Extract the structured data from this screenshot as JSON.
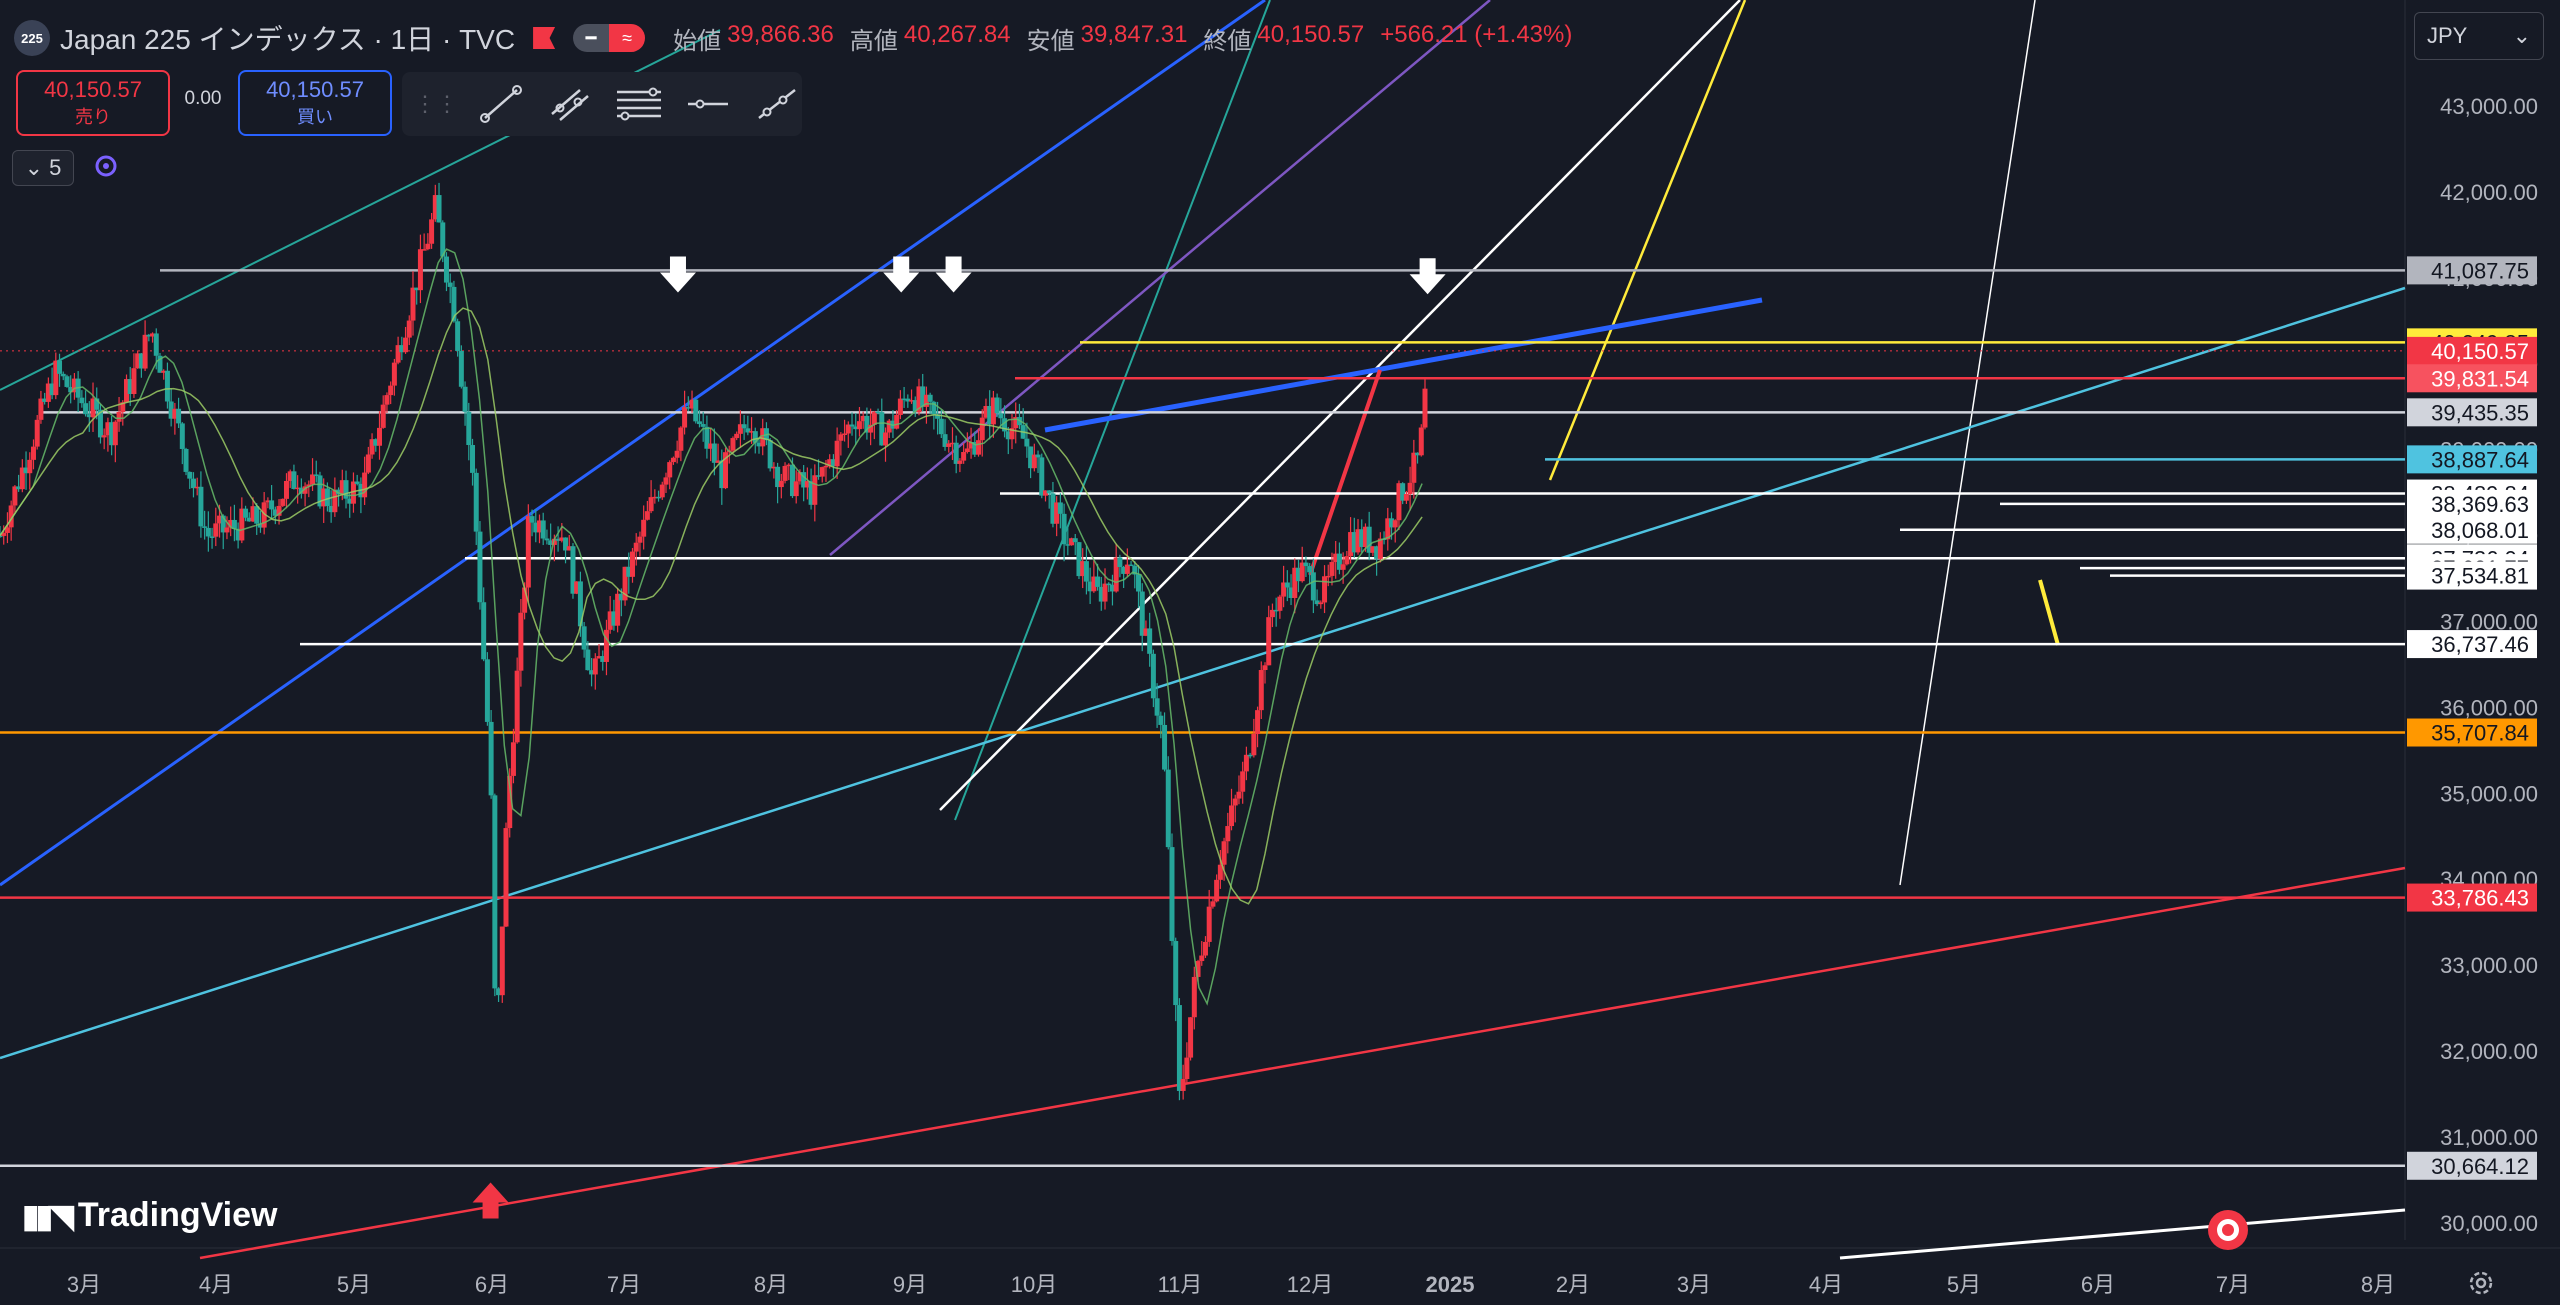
{
  "header": {
    "symbol_logo": "225",
    "symbol_name": "Japan 225 インデックス · 1日 · TVC",
    "ohlc": [
      {
        "label": "始値",
        "value": "39,866.36"
      },
      {
        "label": "高値",
        "value": "40,267.84"
      },
      {
        "label": "安値",
        "value": "39,847.31"
      },
      {
        "label": "終値",
        "value": "40,150.57"
      }
    ],
    "change": "+566.21 (+1.43%)"
  },
  "trade": {
    "sell_price": "40,150.57",
    "sell_label": "売り",
    "spread": "0.00",
    "buy_price": "40,150.57",
    "buy_label": "買い"
  },
  "indicators": {
    "count": "5"
  },
  "currency": {
    "label": "JPY"
  },
  "branding": {
    "logo_text": "TradingView"
  },
  "colors": {
    "up": "#f23645",
    "down": "#26a69a",
    "background": "#161a25",
    "accent": "#2962ff"
  },
  "chart_data": {
    "type": "candlestick",
    "x_tick_labels": [
      "3月",
      "4月",
      "5月",
      "6月",
      "7月",
      "8月",
      "9月",
      "10月",
      "11月",
      "12月",
      "2025",
      "2月",
      "3月",
      "4月",
      "5月",
      "6月",
      "7月",
      "8月"
    ],
    "y_range": [
      29800,
      44000
    ],
    "y_tick_values": [
      30000,
      31000,
      32000,
      33000,
      34000,
      35000,
      36000,
      37000,
      38000,
      39000,
      40000,
      41000,
      42000,
      43000
    ],
    "y_tick_labels": [
      "30,000.00",
      "31,000.00",
      "32,000.00",
      "33,000.00",
      "34,000.00",
      "35,000.00",
      "36,000.00",
      "37,000.00",
      "38,000.00",
      "39,000.00",
      "40,000.00",
      "41,000.00",
      "42,000.00",
      "43,000.00"
    ],
    "price_labels": [
      {
        "value": 41087.75,
        "text": "41,087.75",
        "bg": "#b2b5be",
        "fg": "#131722"
      },
      {
        "value": 40249.85,
        "text": "40,249.85",
        "bg": "#ffeb3b",
        "fg": "#131722"
      },
      {
        "value": 40150.57,
        "text": "40,150.57",
        "bg": "#f23645",
        "fg": "#ffffff"
      },
      {
        "value": 39831.54,
        "text": "39,831.54",
        "bg": "#f7525f",
        "fg": "#ffffff"
      },
      {
        "value": 39435.35,
        "text": "39,435.35",
        "bg": "#d1d4dc",
        "fg": "#131722"
      },
      {
        "value": 38887.64,
        "text": "38,887.64",
        "bg": "#4fc3e0",
        "fg": "#131722"
      },
      {
        "value": 38489.84,
        "text": "38,489.84",
        "bg": "#ffffff",
        "fg": "#131722"
      },
      {
        "value": 38369.63,
        "text": "38,369.63",
        "bg": "#ffffff",
        "fg": "#131722"
      },
      {
        "value": 38068.01,
        "text": "38,068.01",
        "bg": "#ffffff",
        "fg": "#131722"
      },
      {
        "value": 37736.04,
        "text": "37,736.04",
        "bg": "#ffffff",
        "fg": "#131722"
      },
      {
        "value": 37621.77,
        "text": "37,621.77",
        "bg": "#ffffff",
        "fg": "#131722"
      },
      {
        "value": 37534.81,
        "text": "37,534.81",
        "bg": "#ffffff",
        "fg": "#131722"
      },
      {
        "value": 36737.46,
        "text": "36,737.46",
        "bg": "#ffffff",
        "fg": "#131722"
      },
      {
        "value": 35707.84,
        "text": "35,707.84",
        "bg": "#ff9800",
        "fg": "#131722"
      },
      {
        "value": 33786.43,
        "text": "33,786.43",
        "bg": "#f23645",
        "fg": "#ffffff"
      },
      {
        "value": 30664.12,
        "text": "30,664.12",
        "bg": "#d1d4dc",
        "fg": "#131722"
      }
    ],
    "close_path": [
      {
        "d": 0,
        "c": 38000
      },
      {
        "d": 20,
        "c": 39900
      },
      {
        "d": 40,
        "c": 39200
      },
      {
        "d": 55,
        "c": 40400
      },
      {
        "d": 75,
        "c": 38000
      },
      {
        "d": 95,
        "c": 38200
      },
      {
        "d": 108,
        "c": 38700
      },
      {
        "d": 120,
        "c": 38400
      },
      {
        "d": 132,
        "c": 38600
      },
      {
        "d": 148,
        "c": 40600
      },
      {
        "d": 158,
        "c": 41800
      },
      {
        "d": 165,
        "c": 40600
      },
      {
        "d": 172,
        "c": 38500
      },
      {
        "d": 178,
        "c": 35200
      },
      {
        "d": 180,
        "c": 31900
      },
      {
        "d": 184,
        "c": 34800
      },
      {
        "d": 192,
        "c": 38200
      },
      {
        "d": 205,
        "c": 38000
      },
      {
        "d": 215,
        "c": 36300
      },
      {
        "d": 225,
        "c": 37300
      },
      {
        "d": 238,
        "c": 38500
      },
      {
        "d": 250,
        "c": 39500
      },
      {
        "d": 262,
        "c": 38700
      },
      {
        "d": 272,
        "c": 39400
      },
      {
        "d": 283,
        "c": 38700
      },
      {
        "d": 295,
        "c": 38500
      },
      {
        "d": 310,
        "c": 39400
      },
      {
        "d": 322,
        "c": 39200
      },
      {
        "d": 330,
        "c": 39700
      },
      {
        "d": 340,
        "c": 39300
      },
      {
        "d": 350,
        "c": 38900
      },
      {
        "d": 360,
        "c": 39500
      },
      {
        "d": 372,
        "c": 39100
      },
      {
        "d": 386,
        "c": 38000
      },
      {
        "d": 398,
        "c": 37300
      },
      {
        "d": 410,
        "c": 37800
      },
      {
        "d": 422,
        "c": 35600
      },
      {
        "d": 428,
        "c": 31400
      },
      {
        "d": 434,
        "c": 32900
      },
      {
        "d": 442,
        "c": 34200
      },
      {
        "d": 452,
        "c": 35300
      },
      {
        "d": 462,
        "c": 37200
      },
      {
        "d": 472,
        "c": 37600
      },
      {
        "d": 480,
        "c": 37300
      },
      {
        "d": 490,
        "c": 38000
      },
      {
        "d": 500,
        "c": 37900
      },
      {
        "d": 510,
        "c": 38600
      },
      {
        "d": 515,
        "c": 38900
      },
      {
        "d": 517,
        "c": 39580
      },
      {
        "d": 518,
        "c": 40150
      }
    ],
    "annotations": [
      {
        "type": "arrow-down",
        "d": 246,
        "y": 40900
      },
      {
        "type": "arrow-down",
        "d": 327,
        "y": 40900
      },
      {
        "type": "arrow-down",
        "d": 346,
        "y": 40900
      },
      {
        "type": "arrow-down",
        "d": 518,
        "y": 40880
      },
      {
        "type": "arrow-up",
        "d": 178,
        "y": 30400
      }
    ],
    "grid": false
  }
}
